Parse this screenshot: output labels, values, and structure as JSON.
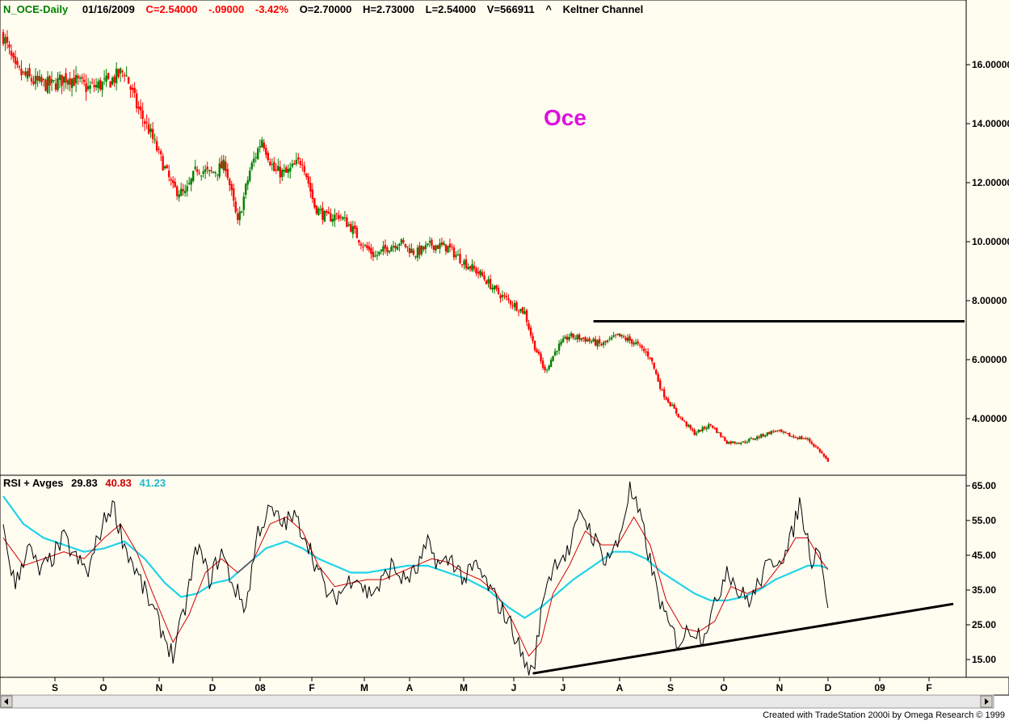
{
  "header": {
    "symbol": "N_OCE-Daily",
    "date": "01/16/2009",
    "close": "C=2.54000",
    "change": "-.09000",
    "change_pct": "-3.42%",
    "open": "O=2.70000",
    "high": "H=2.73000",
    "low": "L=2.54000",
    "volume": "V=566911",
    "caret": "^",
    "indicator": "Keltner Channel"
  },
  "annotation_title": "Oce",
  "rsi_header": {
    "label": "RSI + Avges",
    "rsi": "29.83",
    "avg1": "40.83",
    "avg2": "41.23"
  },
  "footer": "Created with TradeStation 2000i by Omega Research © 1999",
  "colors": {
    "background": "#fffdf0",
    "up_candle": "#008000",
    "down_candle": "#ff0000",
    "rsi_line": "#000000",
    "rsi_avg_fast": "#d00000",
    "rsi_avg_slow": "#22d3e8",
    "title_color": "#dd11dd",
    "header_green": "#008000",
    "header_red": "#ff0000"
  },
  "chart_data": [
    {
      "type": "candlestick",
      "title": "N_OCE-Daily",
      "ylim": [
        2.3,
        17.5
      ],
      "y_ticks": [
        "16.00000",
        "14.00000",
        "12.00000",
        "10.00000",
        "8.00000",
        "6.00000",
        "4.00000"
      ],
      "x_ticks": [
        "S",
        "O",
        "N",
        "D",
        "08",
        "F",
        "M",
        "A",
        "M",
        "J",
        "J",
        "A",
        "S",
        "O",
        "N",
        "D",
        "09",
        "F"
      ],
      "approx_close_path": [
        [
          0,
          17.0
        ],
        [
          6,
          15.8
        ],
        [
          16,
          15.4
        ],
        [
          24,
          15.3
        ],
        [
          32,
          15.6
        ],
        [
          42,
          15.2
        ],
        [
          52,
          15.4
        ],
        [
          60,
          15.8
        ],
        [
          66,
          14.6
        ],
        [
          72,
          13.8
        ],
        [
          78,
          12.8
        ],
        [
          84,
          11.8
        ],
        [
          90,
          11.6
        ],
        [
          96,
          12.5
        ],
        [
          102,
          12.3
        ],
        [
          110,
          12.6
        ],
        [
          116,
          10.6
        ],
        [
          122,
          12.4
        ],
        [
          128,
          13.5
        ],
        [
          134,
          12.4
        ],
        [
          140,
          12.3
        ],
        [
          148,
          12.8
        ],
        [
          154,
          11.2
        ],
        [
          160,
          10.8
        ],
        [
          166,
          10.9
        ],
        [
          172,
          10.5
        ],
        [
          178,
          9.9
        ],
        [
          184,
          9.5
        ],
        [
          190,
          9.8
        ],
        [
          196,
          10.0
        ],
        [
          204,
          9.6
        ],
        [
          212,
          9.9
        ],
        [
          220,
          9.8
        ],
        [
          228,
          9.3
        ],
        [
          236,
          8.9
        ],
        [
          244,
          8.3
        ],
        [
          252,
          7.9
        ],
        [
          258,
          7.6
        ],
        [
          262,
          6.6
        ],
        [
          268,
          5.6
        ],
        [
          274,
          6.4
        ],
        [
          280,
          6.8
        ],
        [
          288,
          6.7
        ],
        [
          296,
          6.5
        ],
        [
          304,
          6.8
        ],
        [
          312,
          6.6
        ],
        [
          320,
          6.1
        ],
        [
          326,
          4.9
        ],
        [
          334,
          4.1
        ],
        [
          342,
          3.5
        ],
        [
          350,
          3.8
        ],
        [
          358,
          3.2
        ],
        [
          366,
          3.2
        ],
        [
          374,
          3.4
        ],
        [
          382,
          3.6
        ],
        [
          390,
          3.4
        ],
        [
          398,
          3.3
        ],
        [
          404,
          2.9
        ],
        [
          408,
          2.54
        ]
      ],
      "resistance_line": {
        "y": 7.3,
        "x_start": 292,
        "x_end": 470
      },
      "annotations": [
        "Oce"
      ]
    },
    {
      "type": "line",
      "title": "RSI + Avges",
      "ylim": [
        10,
        67
      ],
      "y_ticks": [
        "65.00",
        "55.00",
        "45.00",
        "35.00",
        "25.00",
        "15.00"
      ],
      "series": [
        {
          "name": "RSI",
          "values_path": [
            [
              0,
              52
            ],
            [
              6,
              36
            ],
            [
              12,
              48
            ],
            [
              18,
              40
            ],
            [
              24,
              44
            ],
            [
              30,
              50
            ],
            [
              36,
              44
            ],
            [
              42,
              40
            ],
            [
              48,
              52
            ],
            [
              54,
              60
            ],
            [
              60,
              48
            ],
            [
              66,
              40
            ],
            [
              72,
              32
            ],
            [
              78,
              24
            ],
            [
              84,
              16
            ],
            [
              90,
              30
            ],
            [
              96,
              48
            ],
            [
              102,
              38
            ],
            [
              108,
              46
            ],
            [
              114,
              36
            ],
            [
              120,
              30
            ],
            [
              126,
              52
            ],
            [
              132,
              58
            ],
            [
              138,
              54
            ],
            [
              144,
              56
            ],
            [
              150,
              50
            ],
            [
              156,
              40
            ],
            [
              162,
              32
            ],
            [
              168,
              35
            ],
            [
              174,
              40
            ],
            [
              180,
              34
            ],
            [
              186,
              36
            ],
            [
              192,
              42
            ],
            [
              198,
              38
            ],
            [
              204,
              40
            ],
            [
              210,
              48
            ],
            [
              216,
              42
            ],
            [
              222,
              44
            ],
            [
              228,
              38
            ],
            [
              234,
              42
            ],
            [
              240,
              36
            ],
            [
              246,
              30
            ],
            [
              252,
              24
            ],
            [
              258,
              14
            ],
            [
              262,
              11
            ],
            [
              268,
              36
            ],
            [
              274,
              44
            ],
            [
              280,
              46
            ],
            [
              286,
              58
            ],
            [
              292,
              50
            ],
            [
              298,
              44
            ],
            [
              304,
              48
            ],
            [
              310,
              64
            ],
            [
              316,
              54
            ],
            [
              322,
              38
            ],
            [
              328,
              26
            ],
            [
              334,
              20
            ],
            [
              340,
              24
            ],
            [
              346,
              22
            ],
            [
              352,
              30
            ],
            [
              358,
              42
            ],
            [
              364,
              34
            ],
            [
              370,
              32
            ],
            [
              376,
              40
            ],
            [
              382,
              44
            ],
            [
              388,
              46
            ],
            [
              394,
              60
            ],
            [
              400,
              44
            ],
            [
              404,
              48
            ],
            [
              408,
              29.83
            ]
          ]
        },
        {
          "name": "Fast Avg",
          "values_path": [
            [
              0,
              50
            ],
            [
              10,
              42
            ],
            [
              20,
              44
            ],
            [
              30,
              46
            ],
            [
              40,
              44
            ],
            [
              50,
              50
            ],
            [
              58,
              54
            ],
            [
              66,
              46
            ],
            [
              74,
              34
            ],
            [
              84,
              20
            ],
            [
              92,
              28
            ],
            [
              100,
              40
            ],
            [
              108,
              44
            ],
            [
              116,
              40
            ],
            [
              124,
              44
            ],
            [
              132,
              54
            ],
            [
              140,
              56
            ],
            [
              148,
              52
            ],
            [
              156,
              42
            ],
            [
              164,
              36
            ],
            [
              172,
              37
            ],
            [
              180,
              38
            ],
            [
              188,
              38
            ],
            [
              196,
              40
            ],
            [
              204,
              42
            ],
            [
              212,
              44
            ],
            [
              220,
              43
            ],
            [
              228,
              40
            ],
            [
              236,
              38
            ],
            [
              244,
              34
            ],
            [
              252,
              26
            ],
            [
              260,
              16
            ],
            [
              266,
              20
            ],
            [
              272,
              34
            ],
            [
              280,
              42
            ],
            [
              288,
              52
            ],
            [
              296,
              48
            ],
            [
              304,
              48
            ],
            [
              312,
              56
            ],
            [
              320,
              48
            ],
            [
              328,
              32
            ],
            [
              336,
              24
            ],
            [
              344,
              23
            ],
            [
              352,
              26
            ],
            [
              360,
              36
            ],
            [
              368,
              34
            ],
            [
              376,
              36
            ],
            [
              384,
              42
            ],
            [
              392,
              50
            ],
            [
              398,
              50
            ],
            [
              404,
              44
            ],
            [
              408,
              40.83
            ]
          ]
        },
        {
          "name": "Slow Avg",
          "values_path": [
            [
              0,
              62
            ],
            [
              10,
              54
            ],
            [
              20,
              50
            ],
            [
              30,
              48
            ],
            [
              40,
              46
            ],
            [
              50,
              47
            ],
            [
              60,
              49
            ],
            [
              70,
              44
            ],
            [
              80,
              37
            ],
            [
              88,
              33
            ],
            [
              96,
              34
            ],
            [
              104,
              37
            ],
            [
              112,
              38
            ],
            [
              120,
              42
            ],
            [
              130,
              47
            ],
            [
              140,
              49
            ],
            [
              148,
              47
            ],
            [
              156,
              44
            ],
            [
              164,
              42
            ],
            [
              172,
              40
            ],
            [
              180,
              40
            ],
            [
              190,
              41
            ],
            [
              200,
              42
            ],
            [
              210,
              42
            ],
            [
              220,
              40
            ],
            [
              230,
              38
            ],
            [
              240,
              35
            ],
            [
              250,
              30
            ],
            [
              258,
              27
            ],
            [
              266,
              30
            ],
            [
              274,
              34
            ],
            [
              282,
              38
            ],
            [
              292,
              42
            ],
            [
              302,
              46
            ],
            [
              310,
              46
            ],
            [
              318,
              44
            ],
            [
              326,
              40
            ],
            [
              334,
              37
            ],
            [
              342,
              34
            ],
            [
              350,
              32
            ],
            [
              358,
              32
            ],
            [
              366,
              33
            ],
            [
              374,
              35
            ],
            [
              382,
              38
            ],
            [
              390,
              40
            ],
            [
              398,
              42
            ],
            [
              404,
              42
            ],
            [
              408,
              41.23
            ]
          ]
        }
      ],
      "support_line": {
        "from": [
          262,
          11
        ],
        "to": [
          470,
          31
        ]
      }
    }
  ]
}
